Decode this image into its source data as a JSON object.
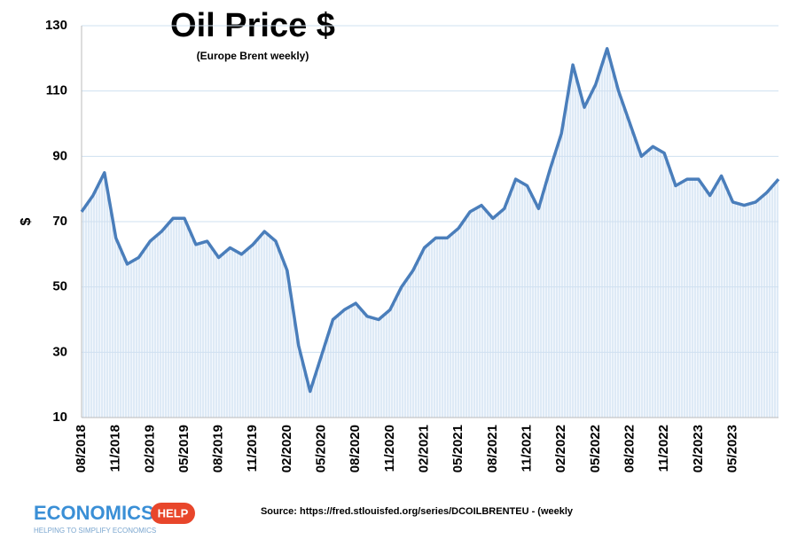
{
  "chart_data": {
    "type": "line",
    "title": "Oil Price $",
    "subtitle": "(Europe Brent weekly)",
    "y_label": "$",
    "source": "Source: https://fred.stlouisfed.org/series/DCOILBRENTEU - (weekly",
    "logo_word": "ECONOMICS",
    "logo_badge": "HELP",
    "logo_tagline": "HELPING TO SIMPLIFY ECONOMICS",
    "categories": [
      "08/2018",
      null,
      null,
      "11/2018",
      null,
      null,
      "02/2019",
      null,
      null,
      "05/2019",
      null,
      null,
      "08/2019",
      null,
      null,
      "11/2019",
      null,
      null,
      "02/2020",
      null,
      null,
      "05/2020",
      null,
      null,
      "08/2020",
      null,
      null,
      "11/2020",
      null,
      null,
      "02/2021",
      null,
      null,
      "05/2021",
      null,
      null,
      "08/2021",
      null,
      null,
      "11/2021",
      null,
      null,
      "02/2022",
      null,
      null,
      "05/2022",
      null,
      null,
      "08/2022",
      null,
      null,
      "11/2022",
      null,
      null,
      "02/2023",
      null,
      null,
      "05/2023",
      null,
      null,
      null,
      null
    ],
    "series": [
      {
        "name": "Brent",
        "color": "#4a7ebb",
        "values": [
          73,
          78,
          85,
          65,
          57,
          59,
          64,
          67,
          71,
          71,
          63,
          64,
          59,
          62,
          60,
          63,
          67,
          64,
          55,
          32,
          18,
          29,
          40,
          43,
          45,
          41,
          40,
          43,
          50,
          55,
          62,
          65,
          65,
          68,
          73,
          75,
          71,
          74,
          83,
          81,
          74,
          86,
          97,
          118,
          105,
          112,
          123,
          110,
          100,
          90,
          93,
          91,
          81,
          83,
          83,
          78,
          84,
          76,
          75,
          76,
          79,
          83
        ]
      }
    ],
    "ylim": [
      10,
      130
    ],
    "yticks": [
      10,
      30,
      50,
      70,
      90,
      110,
      130
    ],
    "grid": true
  }
}
